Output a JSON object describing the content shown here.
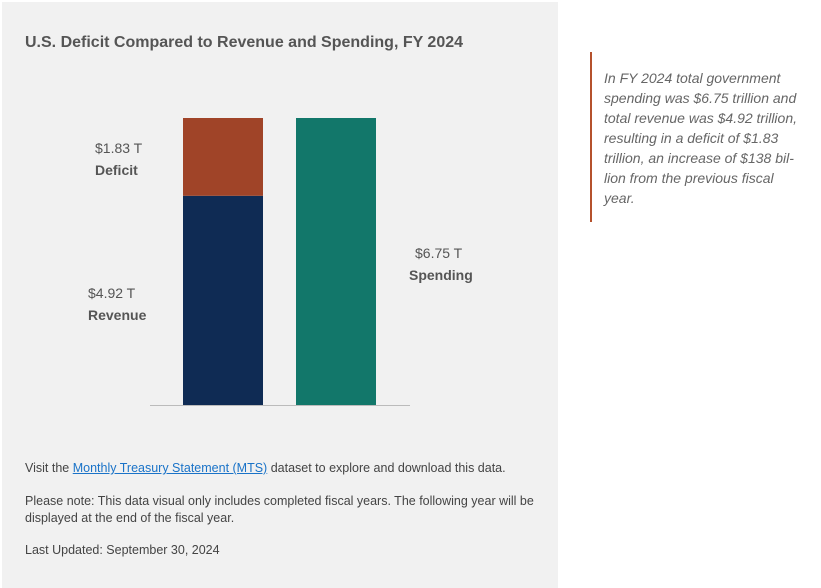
{
  "chart_data": {
    "type": "bar",
    "title": "U.S. Deficit Compared to Revenue and Spending, FY 2024",
    "categories": [
      "Revenue + Deficit",
      "Spending"
    ],
    "series": [
      {
        "name": "Revenue",
        "values": [
          4.92,
          0
        ],
        "value_label": "$4.92 T",
        "color": "#0f2b54"
      },
      {
        "name": "Deficit",
        "values": [
          1.83,
          0
        ],
        "value_label": "$1.83 T",
        "color": "#a04428"
      },
      {
        "name": "Spending",
        "values": [
          0,
          6.75
        ],
        "value_label": "$6.75 T",
        "color": "#12776a"
      }
    ],
    "unit": "trillions USD",
    "ylim": [
      0,
      6.75
    ],
    "stacked": true,
    "grid": false
  },
  "footer": {
    "visit_prefix": "Visit the ",
    "link_text": "Monthly Treasury Statement (MTS)",
    "visit_suffix": " dataset to explore and download this data.",
    "note": "Please note: This data visual only includes completed fiscal years. The following year will be displayed at the end of the fiscal year.",
    "last_updated": "Last Updated: September 30, 2024"
  },
  "callout": {
    "text": "In FY 2024 total government spending was $6.75 trillion and total revenue was $4.92 trillion, resulting in a deficit of $1.83 trillion, an increase of $138 bil-lion from the previous fiscal year.",
    "accent_color": "#b5512c"
  }
}
